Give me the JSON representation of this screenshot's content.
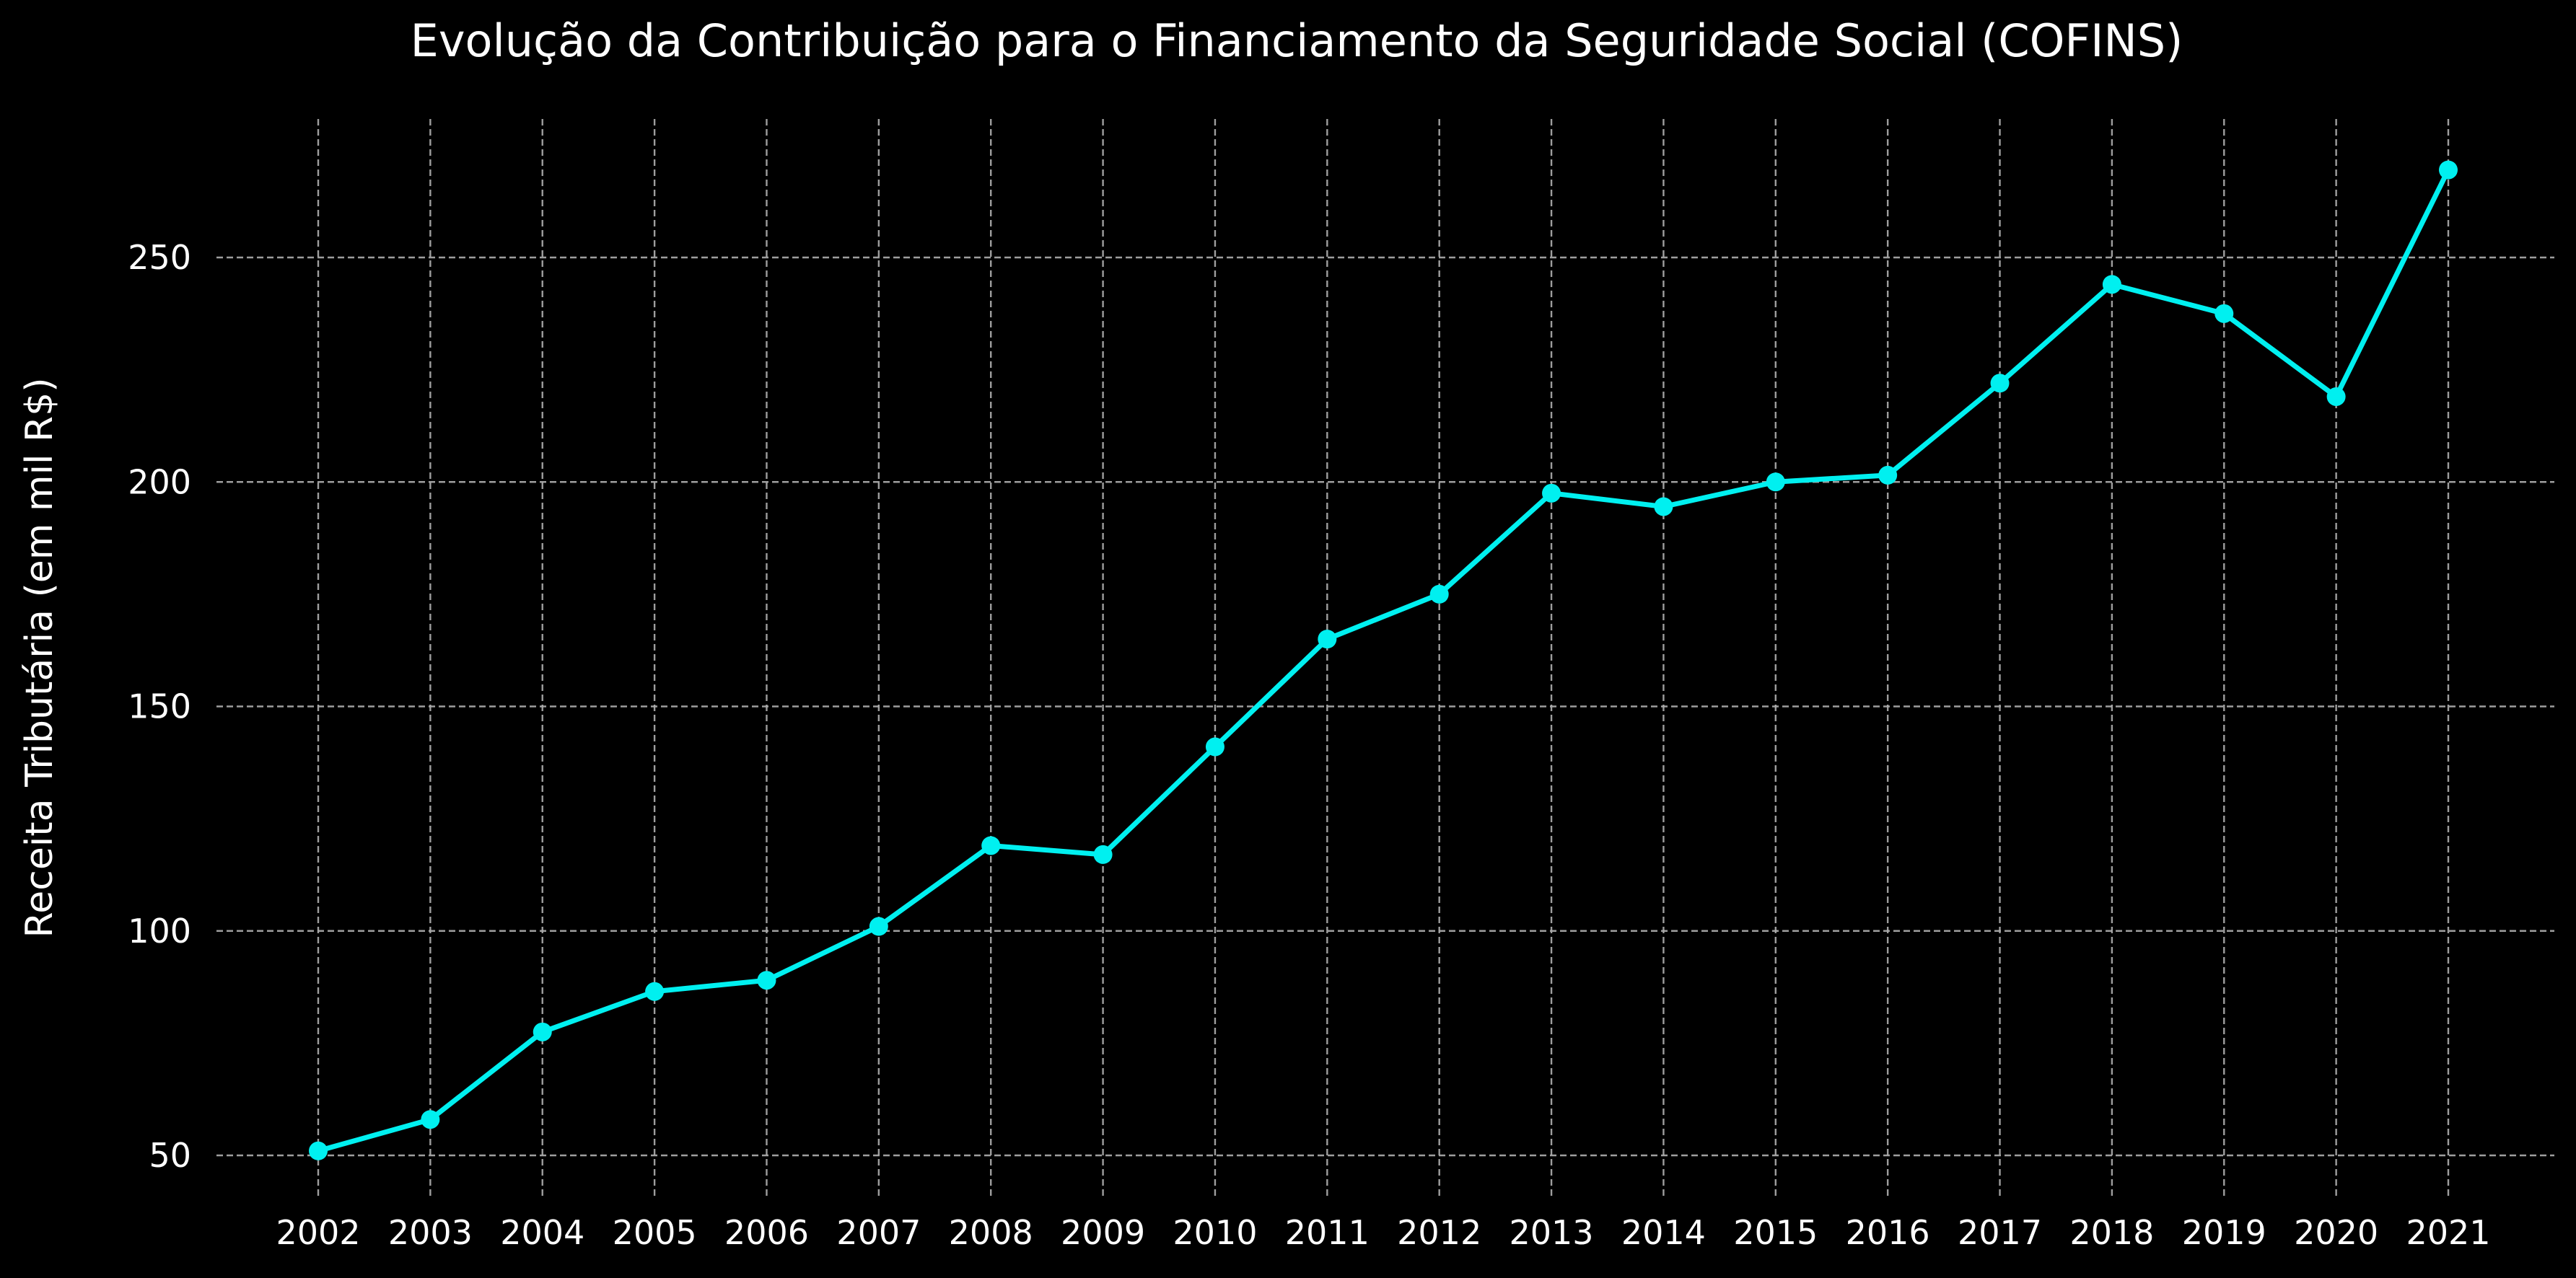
{
  "chart_data": {
    "type": "line",
    "title": "Evolução da Contribuição para o Financiamento da Seguridade Social (COFINS)",
    "xlabel": "",
    "ylabel": "Receita Tributária (em mil R$)",
    "x": [
      "2002",
      "2003",
      "2004",
      "2005",
      "2006",
      "2007",
      "2008",
      "2009",
      "2010",
      "2011",
      "2012",
      "2013",
      "2014",
      "2015",
      "2016",
      "2017",
      "2018",
      "2019",
      "2020",
      "2021"
    ],
    "series": [
      {
        "values": [
          51,
          58,
          77.5,
          86.5,
          89,
          101,
          119,
          117,
          141,
          165,
          175,
          197.5,
          194.5,
          200,
          201.5,
          222,
          244,
          237.5,
          219,
          269.5
        ],
        "color": "#00f0f0"
      }
    ],
    "yticks": [
      50,
      100,
      150,
      200,
      250
    ],
    "ylim": [
      40,
      280
    ],
    "grid": true,
    "background": "#000000",
    "text_color": "#ffffff",
    "grid_color": "#b0b0b0"
  }
}
